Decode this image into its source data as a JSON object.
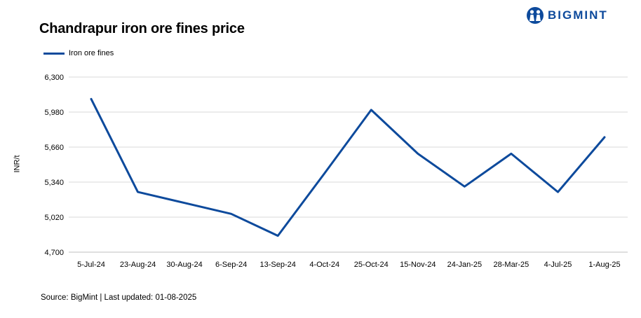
{
  "title": "Chandrapur iron ore fines price",
  "brand": {
    "name": "BIGMINT",
    "color": "#0d4a9c",
    "icon": "people-logo-icon"
  },
  "source": "Source: BigMint | Last updated: 01-08-2025",
  "chart_data": {
    "type": "line",
    "title": "Chandrapur iron ore fines price",
    "ylabel": "INR/t",
    "xlabel": "",
    "categories": [
      "5-Jul-24",
      "23-Aug-24",
      "30-Aug-24",
      "6-Sep-24",
      "13-Sep-24",
      "4-Oct-24",
      "25-Oct-24",
      "15-Nov-24",
      "24-Jan-25",
      "28-Mar-25",
      "4-Jul-25",
      "1-Aug-25"
    ],
    "x_points": [
      0,
      1,
      2,
      3,
      4,
      5,
      6,
      7,
      8,
      9,
      10,
      11
    ],
    "x_point_note": "",
    "series": [
      {
        "name": "Iron ore fines",
        "color": "#0d4a9c",
        "values": [
          6100,
          5250,
          5150,
          5050,
          4850,
          5420,
          6000,
          5600,
          5300,
          5600,
          5250,
          5750
        ]
      }
    ],
    "ylim": [
      4700,
      6300
    ],
    "yticks": [
      "4,700",
      "5,020",
      "5,340",
      "5,660",
      "5,980",
      "6,300"
    ],
    "ytick_values": [
      4700,
      5020,
      5340,
      5660,
      5980,
      6300
    ],
    "grid": true,
    "legend": "top-left"
  }
}
